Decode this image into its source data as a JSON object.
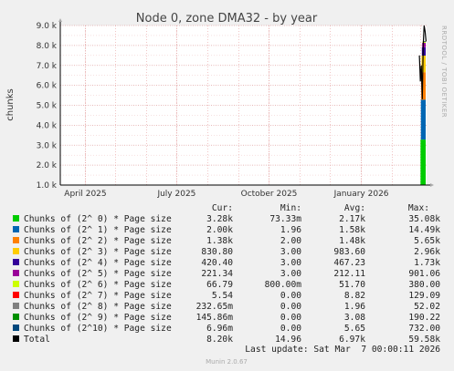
{
  "chart_data": {
    "type": "area",
    "title": "Node 0, zone DMA32 - by year",
    "ylabel": "chunks",
    "side_label": "RRDTOOL / TOBI OETIKER",
    "y_ticks": [
      "1.0 k",
      "2.0 k",
      "3.0 k",
      "4.0 k",
      "5.0 k",
      "6.0 k",
      "7.0 k",
      "8.0 k",
      "9.0 k"
    ],
    "y_tick_values": [
      1000,
      2000,
      3000,
      4000,
      5000,
      6000,
      7000,
      8000,
      9000
    ],
    "ylim": [
      1000,
      9000
    ],
    "x_ticks": [
      {
        "label": "April 2025",
        "t": "2025-04-01"
      },
      {
        "label": "July 2025",
        "t": "2025-07-01"
      },
      {
        "label": "October 2025",
        "t": "2025-10-01"
      },
      {
        "label": "January 2026",
        "t": "2026-01-01"
      }
    ],
    "xlim": [
      "2025-03-07",
      "2026-03-07"
    ],
    "grid": true,
    "legend_header": {
      "cur": "Cur:",
      "min": "Min:",
      "avg": "Avg:",
      "max": "Max:"
    },
    "series": [
      {
        "name": "Chunks of (2^ 0) * Page size",
        "color": "#00cc00",
        "cur": "3.28k",
        "min": "73.33m",
        "avg": "2.17k",
        "max": "35.08k"
      },
      {
        "name": "Chunks of (2^ 1) * Page size",
        "color": "#0066b3",
        "cur": "2.00k",
        "min": "1.96",
        "avg": "1.58k",
        "max": "14.49k"
      },
      {
        "name": "Chunks of (2^ 2) * Page size",
        "color": "#ff8000",
        "cur": "1.38k",
        "min": "2.00",
        "avg": "1.48k",
        "max": "5.65k"
      },
      {
        "name": "Chunks of (2^ 3) * Page size",
        "color": "#ffcc00",
        "cur": "830.80",
        "min": "3.00",
        "avg": "983.60",
        "max": "2.96k"
      },
      {
        "name": "Chunks of (2^ 4) * Page size",
        "color": "#330099",
        "cur": "420.40",
        "min": "3.00",
        "avg": "467.23",
        "max": "1.73k"
      },
      {
        "name": "Chunks of (2^ 5) * Page size",
        "color": "#990099",
        "cur": "221.34",
        "min": "3.00",
        "avg": "212.11",
        "max": "901.06"
      },
      {
        "name": "Chunks of (2^ 6) * Page size",
        "color": "#ccff00",
        "cur": "66.79",
        "min": "800.00m",
        "avg": "51.70",
        "max": "380.00"
      },
      {
        "name": "Chunks of (2^ 7) * Page size",
        "color": "#ff0000",
        "cur": "5.54",
        "min": "0.00",
        "avg": "8.82",
        "max": "129.09"
      },
      {
        "name": "Chunks of (2^ 8) * Page size",
        "color": "#808080",
        "cur": "232.65m",
        "min": "0.00",
        "avg": "1.96",
        "max": "52.02"
      },
      {
        "name": "Chunks of (2^ 9) * Page size",
        "color": "#008f00",
        "cur": "145.86m",
        "min": "0.00",
        "avg": "3.08",
        "max": "190.22"
      },
      {
        "name": "Chunks of (2^10) * Page size",
        "color": "#00487d",
        "cur": "6.96m",
        "min": "0.00",
        "avg": "5.65",
        "max": "732.00"
      },
      {
        "name": "Total",
        "color": "#000000",
        "cur": "8.20k",
        "min": "14.96",
        "avg": "6.97k",
        "max": "59.58k"
      }
    ],
    "spike": {
      "t_start": "2026-02-24",
      "t_end": "2026-03-07",
      "stack_values": [
        3280,
        2000,
        1380,
        830.8,
        420.4,
        221.34,
        66.79,
        5.54,
        0.23,
        0.15,
        0.01
      ],
      "total_peak": 9000,
      "total_trace": [
        7500,
        6200,
        7000,
        5300,
        8000,
        9000,
        8700,
        8200
      ]
    }
  },
  "footer": {
    "last_update": "Last update: Sat Mar  7 00:00:11 2026",
    "munin": "Munin 2.0.67"
  }
}
